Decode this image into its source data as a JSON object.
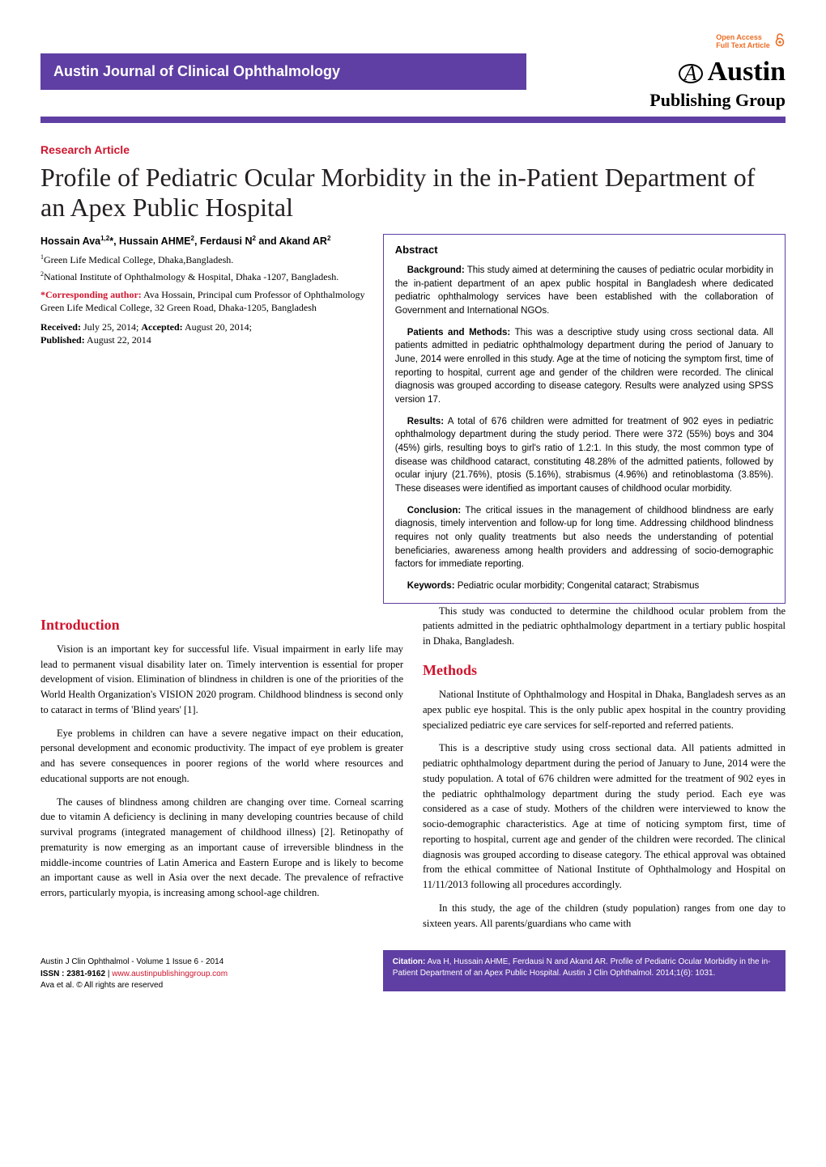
{
  "header": {
    "journal_name": "Austin Journal of Clinical Ophthalmology",
    "open_access_line1": "Open Access",
    "open_access_line2": "Full Text Article",
    "brand_main": "Austin",
    "brand_sub": "Publishing Group"
  },
  "article": {
    "type": "Research Article",
    "title": "Profile of Pediatric Ocular Morbidity in the in-Patient Department of an Apex Public Hospital",
    "authors_html": "Hossain Ava<sup>1,2</sup>*, Hussain AHME<sup>2</sup>, Ferdausi N<sup>2</sup> and Akand AR<sup>2</sup>",
    "affiliations": [
      "Green Life Medical College, Dhaka,Bangladesh.",
      "National Institute of Ophthalmology & Hospital, Dhaka -1207, Bangladesh."
    ],
    "corresponding_label": "*Corresponding author:",
    "corresponding_text": " Ava Hossain, Principal cum Professor of Ophthalmology Green Life Medical College, 32 Green Road, Dhaka-1205, Bangladesh",
    "received_label": "Received:",
    "received": " July 25, 2014; ",
    "accepted_label": "Accepted:",
    "accepted": " August 20, 2014; ",
    "published_label": "Published:",
    "published": " August 22, 2014"
  },
  "abstract": {
    "heading": "Abstract",
    "paragraphs": [
      {
        "run_in": "Background:",
        "text": " This study aimed at determining the causes of pediatric ocular morbidity in the in-patient department of an apex public hospital in Bangladesh where dedicated pediatric ophthalmology services have been established with the collaboration of Government and International NGOs."
      },
      {
        "run_in": "Patients and Methods:",
        "text": " This was a descriptive study using cross sectional data. All patients admitted in pediatric ophthalmology department during the period of January to June, 2014 were enrolled in this study. Age at the time of noticing the symptom first, time of reporting to hospital, current age and gender of the children were recorded. The clinical diagnosis was grouped according to disease category. Results were analyzed using SPSS version 17."
      },
      {
        "run_in": "Results:",
        "text": " A total of 676 children were admitted for treatment of 902 eyes in pediatric ophthalmology department during the study period. There were 372 (55%) boys and 304 (45%) girls, resulting boys to girl's ratio of 1.2:1. In this study, the most common type of disease was childhood cataract, constituting 48.28% of the admitted patients, followed by ocular injury (21.76%), ptosis (5.16%), strabismus (4.96%) and retinoblastoma (3.85%). These diseases were identified as important causes of childhood ocular morbidity."
      },
      {
        "run_in": "Conclusion:",
        "text": " The critical issues in the management of childhood blindness are early diagnosis, timely intervention and follow-up for long time. Addressing childhood blindness requires not only quality treatments but also needs the understanding of potential beneficiaries, awareness among health providers and addressing of socio-demographic factors for immediate reporting."
      },
      {
        "run_in": "Keywords:",
        "text": " Pediatric ocular morbidity; Congenital cataract; Strabismus"
      }
    ]
  },
  "body": {
    "intro_heading": "Introduction",
    "intro_paragraphs": [
      "Vision is an important key for successful life. Visual impairment in early life may lead to permanent visual disability later on. Timely intervention is essential for proper development of vision. Elimination of blindness in children is one of the priorities of the World Health Organization's VISION 2020 program. Childhood blindness is second only to cataract in terms of 'Blind years' [1].",
      "Eye problems in children can have a severe negative impact on their education, personal development and economic productivity. The impact of eye problem is greater and has severe consequences in poorer regions of the world where resources and educational supports are not enough.",
      "The causes of blindness among children are changing over time. Corneal scarring due to vitamin A deficiency is declining in many developing countries because of child survival programs (integrated management of childhood illness) [2]. Retinopathy of prematurity is now emerging as an important cause of irreversible blindness in the middle-income countries of Latin America and Eastern Europe and is likely to become an important cause as well in Asia over the next decade. The prevalence of refractive errors, particularly myopia, is increasing among school-age children.",
      "This study was conducted to determine the childhood ocular problem from the patients admitted in the pediatric ophthalmology department in a tertiary public hospital in Dhaka, Bangladesh."
    ],
    "methods_heading": "Methods",
    "methods_paragraphs": [
      "National Institute of Ophthalmology and Hospital in Dhaka, Bangladesh serves as an apex public eye hospital. This is the only public apex hospital in the country providing specialized pediatric eye care services for self-reported and referred patients.",
      "This is a descriptive study using cross sectional data. All patients admitted in pediatric ophthalmology department during the period of January to June, 2014 were the study population. A total of 676 children were admitted for the treatment of 902 eyes in the pediatric ophthalmology department during the study period. Each eye was considered as a case of study. Mothers of the children were interviewed to know the socio-demographic characteristics. Age at time of noticing symptom first, time of reporting to hospital, current age and gender of the children were recorded. The clinical diagnosis was grouped according to disease category. The ethical approval was obtained from the ethical committee of National Institute of Ophthalmology and Hospital on 11/11/2013 following all procedures accordingly.",
      "In this study, the age of the children (study population) ranges from one day to sixteen years. All parents/guardians who came with"
    ]
  },
  "footer": {
    "volume_line": "Austin J Clin Ophthalmol - Volume 1 Issue 6 - 2014",
    "issn_label": "ISSN : 2381-9162",
    "site_url": "www.austinpublishinggroup.com",
    "rights": "Ava et al. © All rights are reserved",
    "citation_label": "Citation:",
    "citation_text": " Ava H, Hussain AHME, Ferdausi N and Akand AR. Profile of Pediatric Ocular Morbidity in the in-Patient Department of an Apex Public Hospital. Austin J Clin Ophthalmol. 2014;1(6): 1031."
  },
  "colors": {
    "purple": "#5f3fa3",
    "red": "#cf152d",
    "orange": "#ec6c24"
  }
}
